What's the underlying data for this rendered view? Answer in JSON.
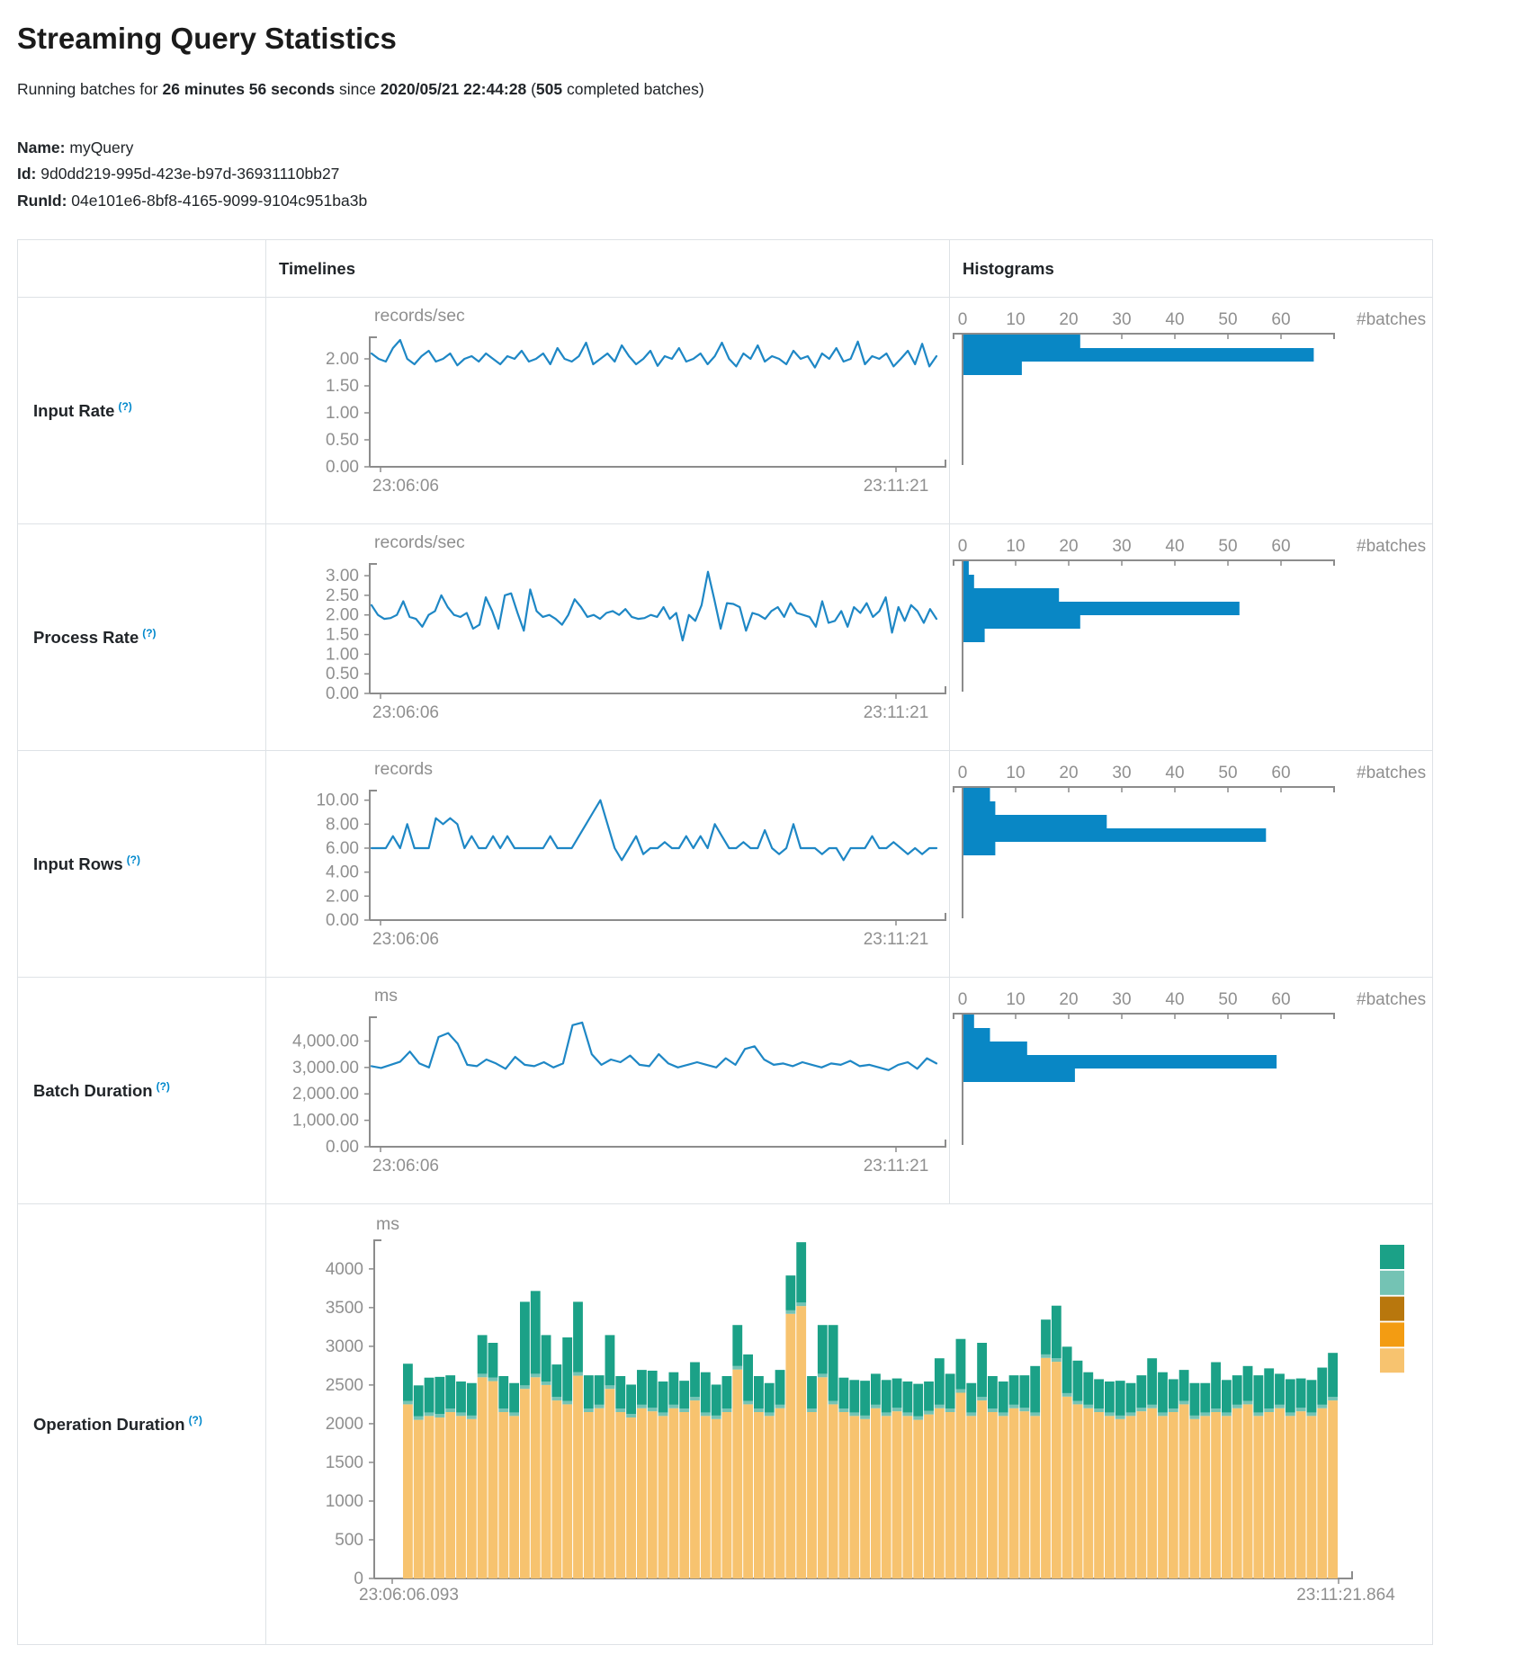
{
  "page": {
    "title": "Streaming Query Statistics",
    "subtitle": {
      "prefix": "Running batches for ",
      "duration": "26 minutes 56 seconds",
      "mid": " since ",
      "start_time": "2020/05/21 22:44:28",
      "sep": " (",
      "batch_count": "505",
      "suffix": " completed batches)"
    },
    "meta": {
      "name_label": "Name:",
      "name": " myQuery",
      "id_label": "Id:",
      "id": " 9d0dd219-995d-423e-b97d-36931110bb27",
      "runid_label": "RunId:",
      "runid": " 04e101e6-8bf8-4165-9099-9104c951ba3b"
    }
  },
  "table": {
    "col_timelines": "Timelines",
    "col_histograms": "Histograms",
    "rows": [
      {
        "label": "Input Rate",
        "help": "(?)"
      },
      {
        "label": "Process Rate",
        "help": "(?)"
      },
      {
        "label": "Input Rows",
        "help": "(?)"
      },
      {
        "label": "Batch Duration",
        "help": "(?)"
      },
      {
        "label": "Operation Duration",
        "help": "(?)"
      }
    ]
  },
  "colors": {
    "line_blue": "#1e87c5",
    "bar_blue": "#0987c5",
    "axis_gray": "#8c8c8c",
    "text_gray": "#8f8f8f",
    "help_blue": "#0088cc",
    "table_border": "#dee2e6"
  },
  "chart_data": [
    {
      "id": "input-rate-timeline",
      "type": "line",
      "unit": "records/sec",
      "x_start": "23:06:06",
      "x_end": "23:11:21",
      "ylim": [
        0,
        2.4
      ],
      "yticks": [
        [
          0,
          "0.00"
        ],
        [
          0.5,
          "0.50"
        ],
        [
          1,
          "1.00"
        ],
        [
          1.5,
          "1.50"
        ],
        [
          2,
          "2.00"
        ]
      ],
      "values": [
        2.1,
        2.0,
        1.95,
        2.2,
        2.35,
        2.0,
        1.9,
        2.05,
        2.15,
        1.95,
        2.0,
        2.1,
        1.88,
        2.0,
        2.05,
        1.95,
        2.1,
        2.0,
        1.9,
        2.05,
        2.0,
        2.15,
        1.95,
        2.0,
        2.1,
        1.9,
        2.2,
        2.0,
        1.95,
        2.05,
        2.3,
        1.9,
        2.0,
        2.1,
        1.95,
        2.25,
        2.05,
        1.9,
        2.0,
        2.15,
        1.87,
        2.05,
        2.0,
        2.2,
        1.95,
        2.0,
        2.1,
        1.9,
        2.05,
        2.3,
        2.0,
        1.86,
        2.1,
        2.0,
        2.25,
        1.95,
        2.05,
        2.0,
        1.9,
        2.15,
        2.0,
        2.05,
        1.84,
        2.1,
        2.0,
        2.2,
        1.95,
        2.0,
        2.32,
        1.9,
        2.05,
        2.0,
        2.1,
        1.86,
        2.0,
        2.15,
        1.9,
        2.28,
        1.86,
        2.05
      ]
    },
    {
      "id": "input-rate-histogram",
      "type": "bar",
      "xlabel": "#batches",
      "xlim": [
        0,
        70
      ],
      "xticks": [
        [
          0,
          "0"
        ],
        [
          10,
          "10"
        ],
        [
          20,
          "20"
        ],
        [
          30,
          "30"
        ],
        [
          40,
          "40"
        ],
        [
          50,
          "50"
        ],
        [
          60,
          "60"
        ]
      ],
      "values": [
        22,
        66,
        11
      ]
    },
    {
      "id": "process-rate-timeline",
      "type": "line",
      "unit": "records/sec",
      "x_start": "23:06:06",
      "x_end": "23:11:21",
      "ylim": [
        0,
        3.3
      ],
      "yticks": [
        [
          0,
          "0.00"
        ],
        [
          0.5,
          "0.50"
        ],
        [
          1,
          "1.00"
        ],
        [
          1.5,
          "1.50"
        ],
        [
          2,
          "2.00"
        ],
        [
          2.5,
          "2.50"
        ],
        [
          3,
          "3.00"
        ]
      ],
      "values": [
        2.25,
        2.0,
        1.9,
        1.92,
        2.0,
        2.35,
        1.95,
        1.9,
        1.7,
        2.0,
        2.1,
        2.5,
        2.2,
        2.0,
        1.95,
        2.05,
        1.65,
        1.75,
        2.45,
        2.1,
        1.65,
        2.5,
        2.55,
        2.05,
        1.6,
        2.65,
        2.1,
        1.95,
        2.0,
        1.9,
        1.75,
        2.0,
        2.4,
        2.2,
        1.95,
        2.0,
        1.9,
        2.05,
        2.1,
        2.0,
        2.15,
        1.95,
        1.9,
        1.92,
        2.0,
        1.95,
        2.2,
        1.9,
        2.05,
        1.35,
        2.0,
        1.85,
        2.25,
        3.1,
        2.4,
        1.65,
        2.3,
        2.28,
        2.2,
        1.6,
        2.05,
        2.0,
        1.9,
        2.1,
        2.2,
        1.95,
        2.3,
        2.05,
        2.0,
        1.95,
        1.7,
        2.35,
        1.8,
        1.85,
        2.1,
        1.7,
        2.2,
        2.05,
        2.3,
        1.95,
        2.1,
        2.45,
        1.55,
        2.2,
        1.85,
        2.25,
        2.1,
        1.8,
        2.15,
        1.9
      ]
    },
    {
      "id": "process-rate-histogram",
      "type": "bar",
      "xlabel": "#batches",
      "xlim": [
        0,
        70
      ],
      "xticks": [
        [
          0,
          "0"
        ],
        [
          10,
          "10"
        ],
        [
          20,
          "20"
        ],
        [
          30,
          "30"
        ],
        [
          40,
          "40"
        ],
        [
          50,
          "50"
        ],
        [
          60,
          "60"
        ]
      ],
      "values": [
        1,
        2,
        18,
        52,
        22,
        4
      ]
    },
    {
      "id": "input-rows-timeline",
      "type": "line",
      "unit": "records",
      "x_start": "23:06:06",
      "x_end": "23:11:21",
      "ylim": [
        0,
        10.8
      ],
      "yticks": [
        [
          0,
          "0.00"
        ],
        [
          2,
          "2.00"
        ],
        [
          4,
          "4.00"
        ],
        [
          6,
          "6.00"
        ],
        [
          8,
          "8.00"
        ],
        [
          10,
          "10.00"
        ]
      ],
      "values": [
        6,
        6,
        6,
        7,
        6,
        8,
        6,
        6,
        6,
        8.5,
        8,
        8.5,
        8,
        6,
        7,
        6,
        6,
        7,
        6,
        7,
        6,
        6,
        6,
        6,
        6,
        7,
        6,
        6,
        6,
        7,
        8,
        9,
        10,
        8,
        6,
        5,
        6,
        7,
        5.5,
        6,
        6,
        6.5,
        6,
        6,
        7,
        6,
        7,
        6,
        8,
        7,
        6,
        6,
        6.5,
        6,
        6,
        7.5,
        6,
        5.5,
        6,
        8,
        6,
        6,
        6,
        5.5,
        6,
        6,
        5,
        6,
        6,
        6,
        7,
        6,
        6,
        6.5,
        6,
        5.5,
        6,
        5.5,
        6,
        6
      ]
    },
    {
      "id": "input-rows-histogram",
      "type": "bar",
      "xlabel": "#batches",
      "xlim": [
        0,
        70
      ],
      "xticks": [
        [
          0,
          "0"
        ],
        [
          10,
          "10"
        ],
        [
          20,
          "20"
        ],
        [
          30,
          "30"
        ],
        [
          40,
          "40"
        ],
        [
          50,
          "50"
        ],
        [
          60,
          "60"
        ]
      ],
      "values": [
        5,
        6,
        27,
        57,
        6
      ]
    },
    {
      "id": "batch-duration-timeline",
      "type": "line",
      "unit": "ms",
      "x_start": "23:06:06",
      "x_end": "23:11:21",
      "ylim": [
        0,
        4900
      ],
      "yticks": [
        [
          0,
          "0.00"
        ],
        [
          1000,
          "1,000.00"
        ],
        [
          2000,
          "2,000.00"
        ],
        [
          3000,
          "3,000.00"
        ],
        [
          4000,
          "4,000.00"
        ]
      ],
      "values": [
        3050,
        2980,
        3100,
        3220,
        3600,
        3150,
        3000,
        4150,
        4300,
        3900,
        3100,
        3050,
        3300,
        3150,
        2950,
        3400,
        3100,
        3050,
        3200,
        3000,
        3150,
        4600,
        4700,
        3500,
        3100,
        3300,
        3200,
        3450,
        3100,
        3050,
        3500,
        3150,
        3000,
        3100,
        3200,
        3100,
        3000,
        3350,
        3100,
        3700,
        3800,
        3300,
        3100,
        3150,
        3050,
        3200,
        3100,
        3000,
        3150,
        3100,
        3250,
        3050,
        3100,
        3000,
        2900,
        3100,
        3200,
        2950,
        3350,
        3150
      ]
    },
    {
      "id": "batch-duration-histogram",
      "type": "bar",
      "xlabel": "#batches",
      "xlim": [
        0,
        70
      ],
      "xticks": [
        [
          0,
          "0"
        ],
        [
          10,
          "10"
        ],
        [
          20,
          "20"
        ],
        [
          30,
          "30"
        ],
        [
          40,
          "40"
        ],
        [
          50,
          "50"
        ],
        [
          60,
          "60"
        ]
      ],
      "values": [
        2,
        5,
        12,
        59,
        21
      ]
    },
    {
      "id": "operation-duration",
      "type": "stacked-bar",
      "unit": "ms",
      "x_start": "23:06:06.093",
      "x_end": "23:11:21.864",
      "ylim": [
        0,
        4370
      ],
      "yticks": [
        [
          0,
          "0"
        ],
        [
          500,
          "500"
        ],
        [
          1000,
          "1000"
        ],
        [
          1500,
          "1500"
        ],
        [
          2000,
          "2000"
        ],
        [
          2500,
          "2500"
        ],
        [
          3000,
          "3000"
        ],
        [
          3500,
          "3500"
        ],
        [
          4000,
          "4000"
        ]
      ],
      "legend_colors": [
        "#1ba187",
        "#74c3b4",
        "#b8770d",
        "#f39c12",
        "#f7c36f"
      ],
      "series": [
        {
          "name": "bottom-segment",
          "color": "#f7c36f",
          "values": [
            2250,
            2050,
            2100,
            2080,
            2150,
            2100,
            2060,
            2600,
            2550,
            2150,
            2100,
            2450,
            2600,
            2500,
            2300,
            2250,
            2620,
            2150,
            2200,
            2450,
            2150,
            2080,
            2200,
            2160,
            2100,
            2200,
            2150,
            2300,
            2100,
            2060,
            2150,
            2700,
            2250,
            2150,
            2100,
            2200,
            3420,
            3520,
            2150,
            2600,
            2250,
            2150,
            2100,
            2060,
            2200,
            2100,
            2160,
            2100,
            2050,
            2120,
            2200,
            2150,
            2400,
            2100,
            2300,
            2150,
            2100,
            2200,
            2160,
            2100,
            2850,
            2800,
            2350,
            2250,
            2200,
            2150,
            2100,
            2060,
            2100,
            2160,
            2200,
            2100,
            2150,
            2250,
            2060,
            2100,
            2150,
            2100,
            2200,
            2250,
            2100,
            2150,
            2200,
            2100,
            2160,
            2100,
            2200,
            2300
          ]
        },
        {
          "name": "middle-segment",
          "color": "#74c3b4",
          "constant": 45
        },
        {
          "name": "top-segment",
          "color": "#1ba187",
          "values": [
            480,
            400,
            450,
            480,
            430,
            400,
            420,
            500,
            450,
            420,
            380,
            1080,
            1070,
            600,
            420,
            820,
            910,
            430,
            380,
            650,
            420,
            380,
            450,
            480,
            400,
            420,
            360,
            450,
            520,
            400,
            420,
            530,
            600,
            420,
            380,
            450,
            450,
            780,
            420,
            630,
            980,
            400,
            420,
            450,
            400,
            420,
            380,
            400,
            420,
            380,
            600,
            450,
            650,
            380,
            700,
            420,
            400,
            380,
            420,
            600,
            450,
            680,
            600,
            520,
            420,
            380,
            400,
            450,
            380,
            420,
            600,
            520,
            380,
            400,
            420,
            380,
            600,
            420,
            380,
            450,
            480,
            520,
            400,
            430,
            380,
            420,
            480,
            570
          ]
        }
      ]
    }
  ]
}
